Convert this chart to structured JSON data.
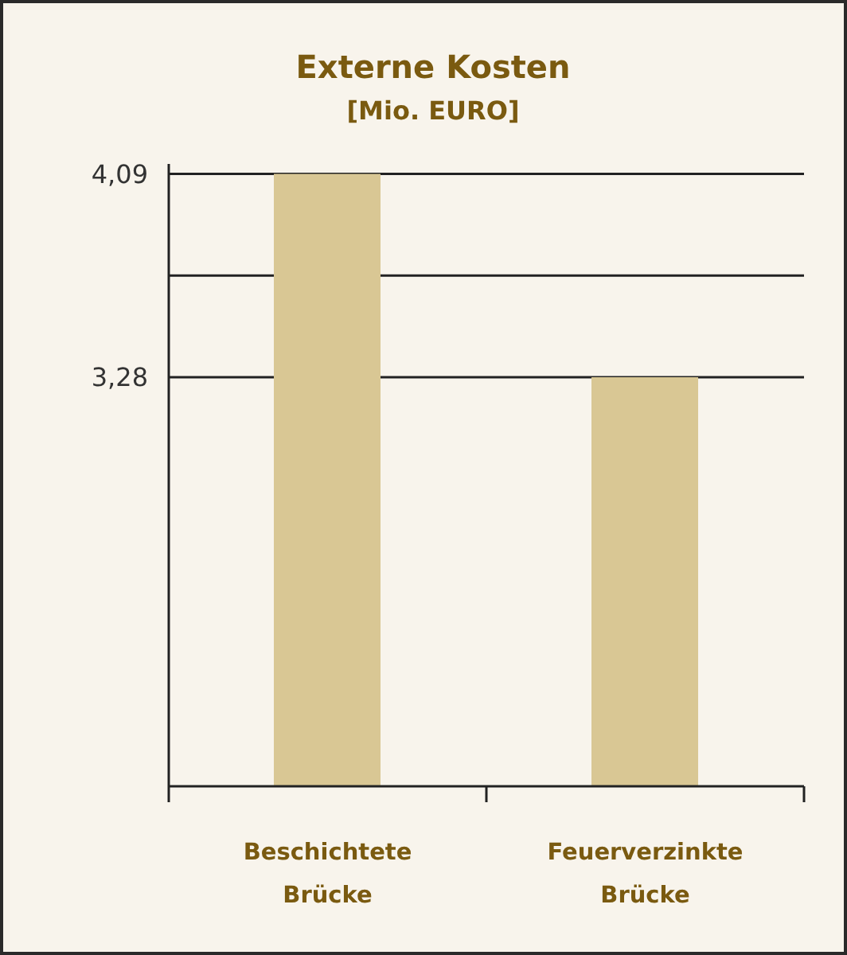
{
  "chart_data": {
    "type": "bar",
    "title": "Externe Kosten",
    "subtitle": "[Mio. EURO]",
    "categories": [
      "Beschichtete Brücke",
      "Feuerverzinkte Brücke"
    ],
    "values": [
      4.09,
      3.28
    ],
    "color": "#d9c794",
    "ylim": [
      1.65,
      4.13
    ],
    "yticks": [
      {
        "value": 4.09,
        "label": "4,09"
      },
      {
        "value": 3.685,
        "label": null
      },
      {
        "value": 3.28,
        "label": "3,28"
      }
    ],
    "grid": "y"
  }
}
